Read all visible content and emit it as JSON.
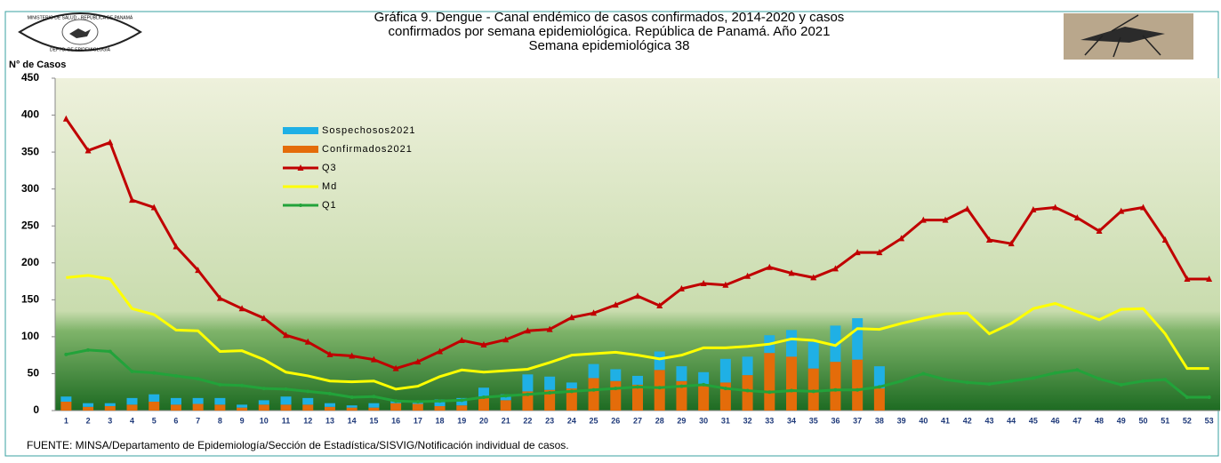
{
  "header": {
    "title": [
      "Gráfica 9. Dengue - Canal endémico de casos confirmados, 2014-2020 y casos",
      "confirmados por semana epidemiológica. República de Panamá. Año 2021",
      "Semana epidemiológica 38"
    ],
    "logo": [
      "MINISTERIO DE SALUD - REPÚBLICA DE PANAMÁ",
      "DEPTO. DE EPIDEMIOLOGÍA"
    ]
  },
  "chart_data": {
    "type": "bar_line",
    "ylabel": "N° de Casos",
    "source": "FUENTE:  MINSA/Departamento  de Epidemiología/Sección de Estadística/SISVIG/Notificación individual de casos.",
    "categories": [
      "1",
      "2",
      "3",
      "4",
      "5",
      "6",
      "7",
      "8",
      "9",
      "10",
      "11",
      "12",
      "13",
      "14",
      "15",
      "16",
      "17",
      "18",
      "19",
      "20",
      "21",
      "22",
      "23",
      "24",
      "25",
      "26",
      "27",
      "28",
      "29",
      "30",
      "31",
      "32",
      "33",
      "34",
      "35",
      "36",
      "37",
      "38",
      "39",
      "40",
      "41",
      "42",
      "43",
      "44",
      "45",
      "46",
      "47",
      "48",
      "49",
      "50",
      "51",
      "52",
      "53"
    ],
    "ylim": [
      0,
      450
    ],
    "yticks": [
      0,
      50,
      100,
      150,
      200,
      250,
      300,
      350,
      400,
      450
    ],
    "series": [
      {
        "name": "Sospechosos2021",
        "kind": "bar",
        "color": "#1fb0e5",
        "values": [
          7,
          5,
          4,
          9,
          10,
          9,
          8,
          9,
          4,
          6,
          11,
          9,
          5,
          3,
          6,
          3,
          4,
          9,
          10,
          12,
          8,
          23,
          18,
          8,
          19,
          16,
          12,
          25,
          20,
          16,
          32,
          25,
          24,
          36,
          36,
          49,
          56,
          30,
          null,
          null,
          null,
          null,
          null,
          null,
          null,
          null,
          null,
          null,
          null,
          null,
          null,
          null,
          null
        ]
      },
      {
        "name": "Confirmados2021",
        "kind": "bar",
        "color": "#e46c0a",
        "values": [
          12,
          5,
          6,
          8,
          12,
          8,
          9,
          8,
          4,
          8,
          8,
          8,
          5,
          4,
          4,
          10,
          9,
          6,
          7,
          19,
          14,
          26,
          28,
          30,
          44,
          40,
          35,
          55,
          40,
          36,
          38,
          48,
          78,
          73,
          57,
          66,
          69,
          30,
          null,
          null,
          null,
          null,
          null,
          null,
          null,
          null,
          null,
          null,
          null,
          null,
          null,
          null,
          null
        ]
      },
      {
        "name": "Q3",
        "kind": "line",
        "marker": "triangle",
        "color": "#c00000",
        "values": [
          395,
          352,
          363,
          285,
          275,
          222,
          190,
          152,
          138,
          125,
          102,
          93,
          76,
          74,
          69,
          57,
          66,
          80,
          95,
          89,
          96,
          108,
          110,
          126,
          132,
          143,
          155,
          142,
          165,
          172,
          170,
          182,
          194,
          186,
          180,
          192,
          214,
          214,
          233,
          258,
          258,
          273,
          231,
          226,
          272,
          275,
          261,
          243,
          270,
          275,
          231,
          178,
          178
        ]
      },
      {
        "name": "Md",
        "kind": "line",
        "color": "#ffff00",
        "values": [
          180,
          183,
          178,
          138,
          130,
          109,
          108,
          80,
          81,
          69,
          52,
          47,
          40,
          39,
          40,
          29,
          33,
          46,
          55,
          52,
          54,
          56,
          65,
          75,
          77,
          79,
          75,
          70,
          75,
          85,
          85,
          87,
          90,
          97,
          95,
          88,
          111,
          110,
          118,
          125,
          131,
          132,
          104,
          118,
          138,
          145,
          134,
          123,
          137,
          138,
          104,
          57,
          57
        ]
      },
      {
        "name": "Q1",
        "kind": "line",
        "marker": "dot",
        "color": "#22a33a",
        "values": [
          76,
          82,
          80,
          53,
          51,
          47,
          43,
          35,
          34,
          30,
          29,
          26,
          23,
          18,
          19,
          13,
          12,
          13,
          14,
          18,
          20,
          22,
          24,
          26,
          28,
          30,
          32,
          31,
          33,
          35,
          30,
          27,
          25,
          27,
          26,
          28,
          28,
          32,
          40,
          50,
          42,
          38,
          36,
          40,
          44,
          51,
          55,
          43,
          35,
          40,
          42,
          18,
          18
        ]
      }
    ]
  }
}
